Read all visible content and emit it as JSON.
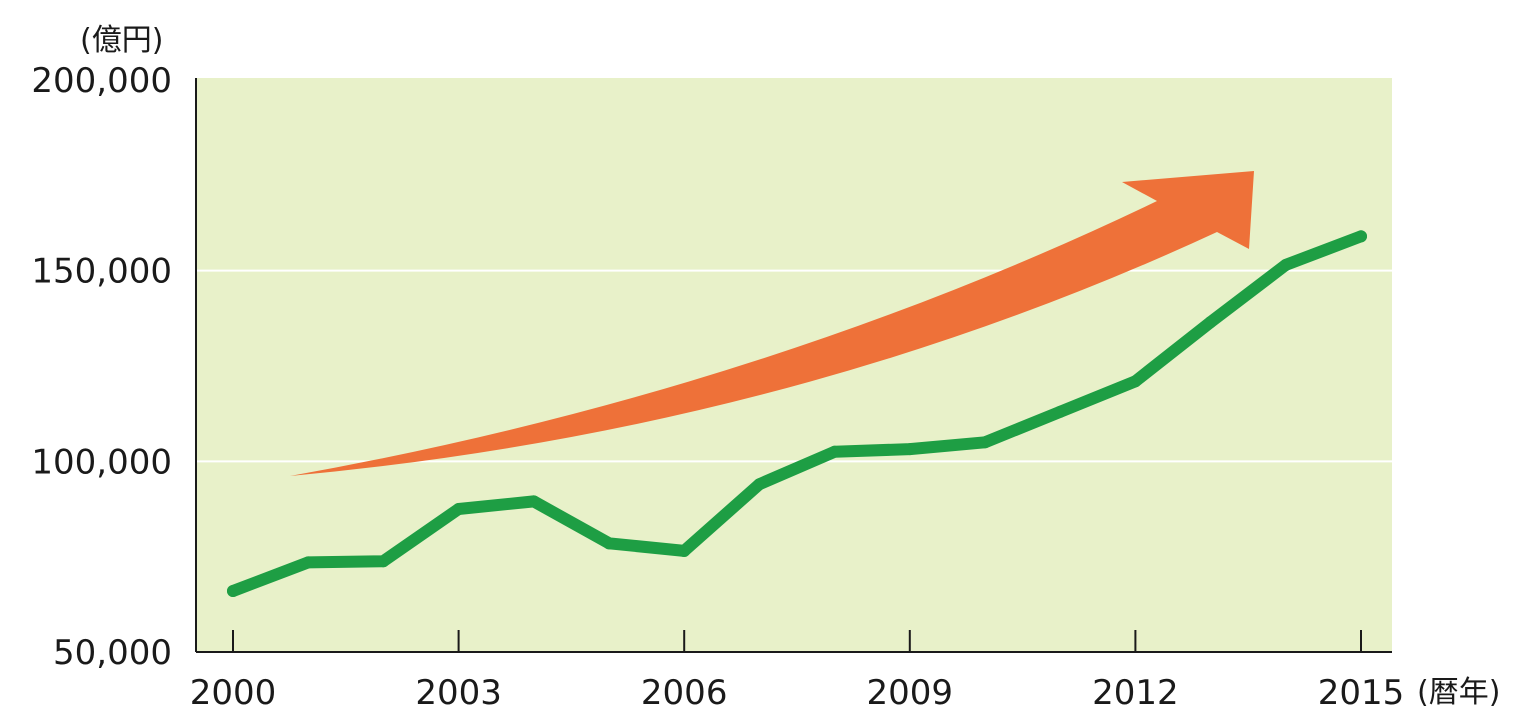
{
  "chart_data": {
    "type": "line",
    "ylabel": "(億円)",
    "xlabel": "(暦年)",
    "ylim": [
      50000,
      200000
    ],
    "xlim": [
      2000,
      2015
    ],
    "y_ticks": [
      {
        "value": 50000,
        "label": "50,000"
      },
      {
        "value": 100000,
        "label": "100,000"
      },
      {
        "value": 150000,
        "label": "150,000"
      },
      {
        "value": 200000,
        "label": "200,000"
      }
    ],
    "x_ticks": [
      {
        "value": 2000,
        "label": "2000"
      },
      {
        "value": 2003,
        "label": "2003"
      },
      {
        "value": 2006,
        "label": "2006"
      },
      {
        "value": 2009,
        "label": "2009"
      },
      {
        "value": 2012,
        "label": "2012"
      },
      {
        "value": 2015,
        "label": "2015"
      }
    ],
    "grid": {
      "horizontal": true,
      "vertical": false
    },
    "series": [
      {
        "x": [
          2000,
          2001,
          2002,
          2003,
          2004,
          2005,
          2006,
          2007,
          2008,
          2009,
          2010,
          2011,
          2012,
          2013,
          2014,
          2015
        ],
        "values": [
          66000,
          73500,
          73800,
          87500,
          89500,
          78500,
          76500,
          94000,
          102500,
          103200,
          105000,
          113000,
          121000,
          136500,
          151500,
          159000
        ],
        "color": "#1e9e44"
      }
    ],
    "trend_arrow": {
      "color": "#ee7139",
      "direction": "upward"
    },
    "colors": {
      "plot_background": "#e8f1c9",
      "gridline": "#ffffff",
      "axis": "#1a1a1a"
    }
  }
}
